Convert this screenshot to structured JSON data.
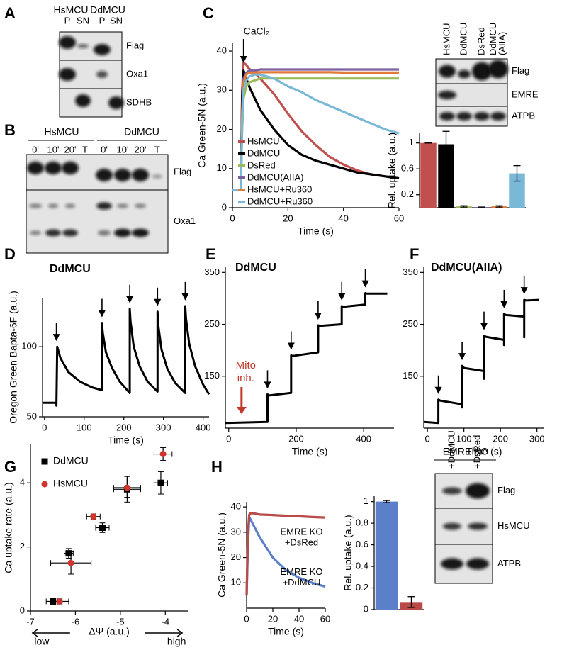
{
  "panel_labels": [
    "A",
    "B",
    "C",
    "D",
    "E",
    "F",
    "G",
    "H"
  ],
  "blots": [
    {
      "groups": [
        "HsMCU",
        "DdMCU"
      ],
      "lanes": [
        "P",
        "SN",
        "P",
        "SN"
      ],
      "rows": [
        "Flag",
        "Oxa1",
        "SDHB"
      ]
    },
    {
      "groups": [
        "HsMCU",
        "DdMCU"
      ],
      "lanes": [
        "0'",
        "10'",
        "20'",
        "T",
        "0'",
        "10'",
        "20'",
        "T"
      ],
      "rows": [
        "Flag",
        "Oxa1"
      ]
    },
    {
      "lanes": [
        "HsMCU",
        "DdMCU",
        "DsRed",
        [
          "DdMCU",
          "(AIIA)"
        ]
      ],
      "rows": [
        "Flag",
        "EMRE",
        "ATPB"
      ]
    },
    {
      "groups": [
        "EMRE KO"
      ],
      "lanes": [
        "+DdMCU",
        "+DsRed"
      ],
      "rows": [
        "Flag",
        "HsMCU",
        "ATPB"
      ]
    }
  ],
  "chart_data": [
    {
      "type": "line",
      "annotations": [
        {
          "text": "CaCl₂",
          "x": 4
        }
      ],
      "xlabel": "Time (s)",
      "ylabel": "Ca Green-5N (a.u.)",
      "legend": "lower left",
      "x": [
        0,
        3,
        3.5,
        4,
        5,
        6,
        8,
        10,
        15,
        20,
        25,
        30,
        35,
        40,
        45,
        50,
        55,
        60
      ],
      "xlim": [
        0,
        60
      ],
      "ylim": [
        0,
        42
      ],
      "xticks": [
        0,
        20,
        40,
        60
      ],
      "yticks": [
        0,
        10,
        20,
        30,
        40
      ],
      "series": [
        {
          "name": "HsMCU",
          "color": "#c0504d",
          "values": [
            4.5,
            4.5,
            30,
            37,
            36.5,
            35.5,
            34.5,
            33,
            29,
            24,
            19.5,
            16,
            13,
            11,
            9.5,
            8.5,
            8,
            7.5
          ]
        },
        {
          "name": "DdMCU",
          "color": "#000000",
          "values": [
            4.5,
            4.5,
            28,
            35,
            33,
            31,
            28,
            25,
            20,
            16,
            13.5,
            12,
            11,
            10,
            9,
            8.5,
            8,
            7.5
          ]
        },
        {
          "name": "DsRed",
          "color": "#9bbb59",
          "values": [
            4.5,
            4.5,
            20,
            28,
            31,
            32,
            32.5,
            33,
            33,
            33,
            33,
            33,
            33,
            33,
            33,
            33,
            33,
            33
          ]
        },
        {
          "name": "DdMCU(AIIA)",
          "color": "#7d60a0",
          "values": [
            4.5,
            4.5,
            25,
            33,
            34.5,
            35,
            35,
            35.3,
            35.3,
            35.3,
            35.3,
            35.3,
            35.3,
            35.3,
            35.3,
            35.3,
            35.3,
            35.3
          ]
        },
        {
          "name": "HsMCU+Ru360",
          "color": "#e07b39",
          "values": [
            4.5,
            4.5,
            24,
            32,
            34,
            34.5,
            34.5,
            34.6,
            34.6,
            34.6,
            34.6,
            34.6,
            34.6,
            34.5,
            34.5,
            34.5,
            34.5,
            34.5
          ]
        },
        {
          "name": "DdMCU+Ru360",
          "color": "#7ab8d8",
          "values": [
            4.5,
            4.5,
            22,
            30,
            32.5,
            33.5,
            34,
            34,
            33,
            31,
            29.5,
            27.5,
            26,
            24.5,
            23,
            21.5,
            20,
            19
          ]
        }
      ]
    },
    {
      "type": "bar",
      "ylabel": "Rel. uptake (a.u.)",
      "categories": [
        null,
        null,
        null,
        null,
        null,
        null
      ],
      "values": [
        1,
        0.98,
        0.02,
        0.01,
        0.02,
        0.53
      ],
      "errors": [
        0,
        0.2,
        0.01,
        0,
        0.01,
        0.12
      ],
      "colors": [
        "#c0504d",
        "#000000",
        "#9bbb59",
        "#7d60a0",
        "#e07b39",
        "#7ab8d8"
      ],
      "ylim": [
        0,
        1.15
      ],
      "yticks": [
        0.2,
        0.6,
        1
      ]
    },
    {
      "type": "line",
      "title": "DdMCU",
      "xlabel": "Time (s)",
      "ylabel": "Oregon Green Bapta-6F (a.u.)",
      "color": "#000000",
      "x": [
        -5,
        30,
        30,
        32,
        40,
        60,
        90,
        120,
        145,
        145,
        147,
        155,
        170,
        190,
        215,
        215,
        217,
        225,
        240,
        260,
        285,
        285,
        287,
        295,
        310,
        330,
        355,
        355,
        357,
        365,
        380,
        400,
        415
      ],
      "values": [
        60,
        60,
        58,
        100,
        92,
        82,
        75,
        71,
        69,
        117,
        110,
        96,
        85,
        75,
        67,
        127,
        118,
        100,
        86,
        75,
        68,
        125,
        115,
        98,
        84,
        74,
        67,
        129,
        120,
        102,
        86,
        73,
        66
      ],
      "arrows": [
        30,
        145,
        215,
        285,
        355
      ],
      "xlim": [
        -5,
        415
      ],
      "ylim": [
        50,
        135
      ],
      "xticks": [
        0,
        100,
        200,
        300,
        400
      ],
      "yticks": [
        50,
        100
      ]
    },
    {
      "type": "line",
      "title": "DdMCU",
      "xlabel": "Time (s)",
      "color": "#000000",
      "x": [
        -10,
        115,
        115,
        120,
        185,
        185,
        190,
        265,
        265,
        270,
        335,
        335,
        340,
        405,
        405,
        410,
        470
      ],
      "values": [
        60,
        62,
        115,
        113,
        118,
        190,
        189,
        196,
        248,
        247,
        250,
        285,
        284,
        288,
        310,
        309,
        309
      ],
      "arrows": [
        115,
        185,
        265,
        335,
        405
      ],
      "annotations": [
        {
          "lines": [
            "Mito",
            "inh."
          ],
          "x": 38,
          "color": "#c0392b"
        }
      ],
      "xlim": [
        -10,
        490
      ],
      "ylim": [
        50,
        360
      ],
      "xticks": [
        0,
        200,
        400
      ],
      "yticks": [
        150,
        250,
        350
      ]
    },
    {
      "type": "line",
      "title": "DdMCU(AIIA)",
      "xlabel": "Time (s)",
      "color": "#000000",
      "x": [
        -10,
        30,
        30,
        35,
        95,
        95,
        95,
        100,
        155,
        155,
        155,
        160,
        210,
        210,
        210,
        215,
        265,
        265,
        265,
        270,
        305
      ],
      "values": [
        62,
        60,
        105,
        103,
        96,
        90,
        170,
        166,
        160,
        145,
        228,
        226,
        220,
        210,
        270,
        268,
        265,
        225,
        297,
        296,
        297
      ],
      "arrows": [
        30,
        95,
        155,
        210,
        265
      ],
      "xlim": [
        -10,
        320
      ],
      "ylim": [
        50,
        360
      ],
      "xticks": [
        0,
        100,
        200,
        300
      ],
      "yticks": [
        150,
        250,
        350
      ]
    },
    {
      "type": "scatter",
      "xlabel": "ΔΨ (a.u.)",
      "ylabel": "Ca uptake rate (a.u.)",
      "legend": "upper left",
      "annotations": [
        {
          "text": "low",
          "x": -6.75
        },
        {
          "text": "high",
          "x": -3.75
        }
      ],
      "xlim": [
        -7,
        -3.5
      ],
      "ylim": [
        0,
        5.2
      ],
      "xticks": [
        -7,
        -6,
        -5,
        -4
      ],
      "yticks": [
        0,
        2,
        4
      ],
      "series": [
        {
          "name": "DdMCU",
          "color": "#000000",
          "marker": "square",
          "x": [
            -6.5,
            -6.15,
            -5.4,
            -4.85,
            -4.1
          ],
          "values": [
            0.3,
            1.8,
            2.6,
            3.8,
            4.0
          ],
          "xerr": [
            0.15,
            0.1,
            0.15,
            0.3,
            0.15
          ],
          "yerr": [
            0.1,
            0.15,
            0.15,
            0.4,
            0.35
          ]
        },
        {
          "name": "HsMCU",
          "color": "#d0342c",
          "marker": "circle",
          "x": [
            -6.35,
            -6.1,
            -5.6,
            -4.85,
            -4.05
          ],
          "values": [
            0.3,
            1.5,
            2.95,
            3.85,
            4.9
          ],
          "xerr": [
            0.2,
            0.45,
            0.15,
            0.3,
            0.2
          ],
          "yerr": [
            0.08,
            0.35,
            0.08,
            0.3,
            0.2
          ]
        }
      ]
    },
    {
      "type": "line",
      "xlabel": "Time (s)",
      "ylabel": "Ca Green-5N (a.u.)",
      "x": [
        0,
        1,
        2,
        3,
        5,
        10,
        20,
        30,
        40,
        50,
        60
      ],
      "xlim": [
        0,
        60
      ],
      "ylim": [
        0,
        42
      ],
      "xticks": [
        0,
        20,
        40,
        60
      ],
      "yticks": [
        10,
        20,
        30,
        40
      ],
      "series": [
        {
          "label": [
            "EMRE KO",
            "+DdMCU"
          ],
          "color": "#5b7fc8",
          "values": [
            5,
            25,
            36,
            35,
            33,
            28,
            20,
            15,
            12,
            10,
            8.5
          ]
        },
        {
          "label": [
            "EMRE KO",
            "+DsRed"
          ],
          "color": "#b94a48",
          "values": [
            5,
            30,
            37,
            37.5,
            37.5,
            37,
            36.8,
            36.5,
            36.3,
            36,
            35.8
          ]
        }
      ]
    },
    {
      "type": "bar",
      "ylabel": "Rel. uptake (a.u.)",
      "categories": [
        null,
        null
      ],
      "values": [
        1,
        0.07
      ],
      "errors": [
        0.01,
        0.05
      ],
      "colors": [
        "#5b7fc8",
        "#b94a48"
      ],
      "ylim": [
        0,
        1.05
      ],
      "yticks": [
        0,
        0.2,
        0.4,
        0.6,
        0.8,
        1
      ]
    }
  ]
}
